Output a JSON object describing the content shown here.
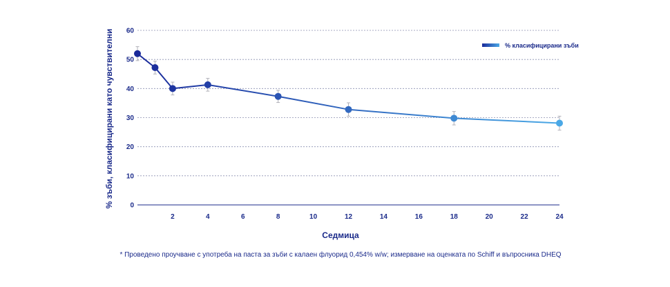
{
  "chart_data": {
    "type": "line",
    "title": "",
    "xlabel": "Седмица",
    "ylabel": "% зъби, класифицирани като чувствителни",
    "xlim": [
      0,
      24
    ],
    "ylim": [
      0,
      60
    ],
    "xticks": [
      2,
      4,
      6,
      8,
      10,
      12,
      14,
      16,
      18,
      20,
      22,
      24
    ],
    "yticks": [
      0,
      10,
      20,
      30,
      40,
      50,
      60
    ],
    "grid": "horizontal-dotted",
    "legend_position": "top-right",
    "series": [
      {
        "name": "% класифицирани зъби",
        "x": [
          0,
          1,
          2,
          4,
          8,
          12,
          18,
          24
        ],
        "y": [
          52,
          47.2,
          40,
          41.3,
          37.3,
          32.8,
          29.8,
          28.1
        ],
        "error": [
          2.4,
          2.2,
          2.2,
          2.2,
          2.1,
          2.3,
          2.3,
          2.4
        ]
      }
    ],
    "colors": {
      "start": "#1a2a9a",
      "end": "#4aa8e6",
      "axis": "#1a2a8a",
      "grid": "#8a8fb0",
      "errorbar": "#b0b0b8"
    }
  },
  "footnote": "* Проведено проучване с употреба на паста за зъби с калаен флуорид 0,454% w/w; измерване на оценката по Schiff и въпросника DHEQ"
}
